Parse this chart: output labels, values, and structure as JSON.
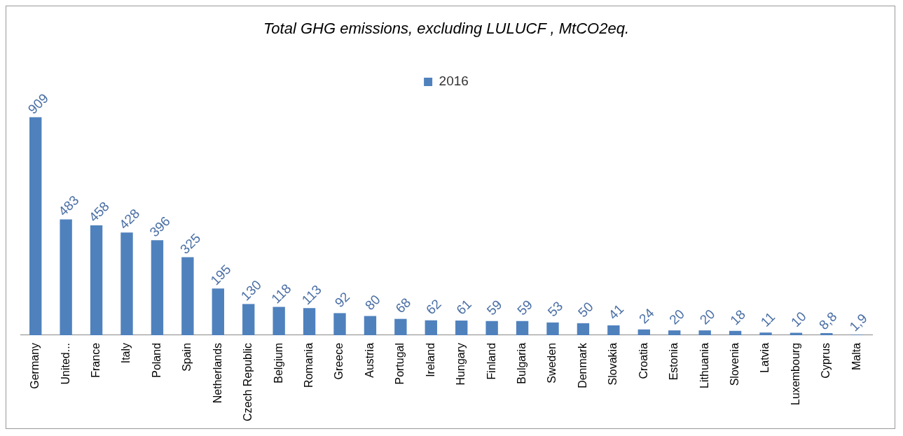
{
  "chart_data": {
    "type": "bar",
    "title": "Total GHG emissions, excluding LULUCF , MtCO2eq.",
    "categories": [
      "Germany",
      "United...",
      "France",
      "Italy",
      "Poland",
      "Spain",
      "Netherlands",
      "Czech Republic",
      "Belgium",
      "Romania",
      "Greece",
      "Austria",
      "Portugal",
      "Ireland",
      "Hungary",
      "Finland",
      "Bulgaria",
      "Sweden",
      "Denmark",
      "Slovakia",
      "Croatia",
      "Estonia",
      "Lithuania",
      "Slovenia",
      "Latvia",
      "Luxembourg",
      "Cyprus",
      "Malta"
    ],
    "series": [
      {
        "name": "2016",
        "color": "#4f81bd",
        "values": [
          909,
          483,
          458,
          428,
          396,
          325,
          195,
          130,
          118,
          113,
          92,
          80,
          68,
          62,
          61,
          59,
          59,
          53,
          50,
          41,
          24,
          20,
          20,
          18,
          11,
          10,
          8.8,
          1.9
        ],
        "value_labels": [
          "909",
          "483",
          "458",
          "428",
          "396",
          "325",
          "195",
          "130",
          "118",
          "113",
          "92",
          "80",
          "68",
          "62",
          "61",
          "59",
          "59",
          "53",
          "50",
          "41",
          "24",
          "20",
          "20",
          "18",
          "11",
          "10",
          "8,8",
          "1,9"
        ]
      }
    ],
    "legend": "top",
    "grid": false
  }
}
